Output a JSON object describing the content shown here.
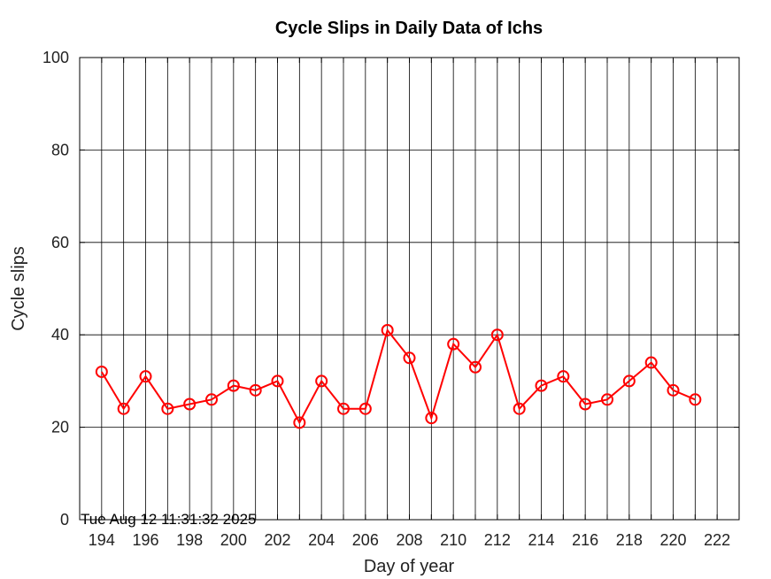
{
  "chart_data": {
    "type": "line",
    "title": "Cycle Slips in Daily Data of Ichs",
    "xlabel": "Day of year",
    "ylabel": "Cycle slips",
    "xlim": [
      193,
      223
    ],
    "ylim": [
      0,
      100
    ],
    "x_ticks": [
      194,
      196,
      198,
      200,
      202,
      204,
      206,
      208,
      210,
      212,
      214,
      216,
      218,
      220,
      222
    ],
    "y_ticks": [
      0,
      20,
      40,
      60,
      80,
      100
    ],
    "grid": true,
    "series": [
      {
        "color": "#ff0000",
        "marker": "circle",
        "x": [
          194,
          195,
          196,
          197,
          198,
          199,
          200,
          201,
          202,
          203,
          204,
          205,
          206,
          207,
          208,
          209,
          210,
          211,
          212,
          213,
          214,
          215,
          216,
          217,
          218,
          219,
          220,
          221
        ],
        "values": [
          32,
          24,
          31,
          24,
          25,
          26,
          29,
          28,
          30,
          21,
          30,
          24,
          24,
          41,
          35,
          22,
          38,
          33,
          40,
          24,
          29,
          31,
          25,
          26,
          30,
          34,
          28,
          26
        ]
      }
    ],
    "timestamp": "Tue Aug 12 11:31:32 2025"
  }
}
